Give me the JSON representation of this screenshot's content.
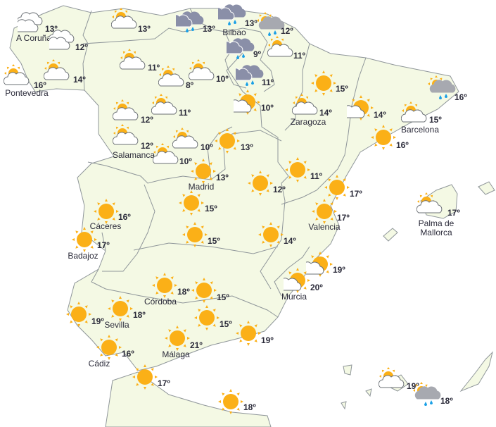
{
  "colors": {
    "land": "#f4f9e4",
    "border": "#8f969a",
    "sun": "#fbb017",
    "cloud_fill": "#ffffff",
    "cloud_stroke": "#6b7075",
    "rain_cloud": "#8a8fa8",
    "rain_drop": "#1aa0e6",
    "gray_cloud": "#a7a9b0"
  },
  "degree_symbol": "º",
  "markers": [
    {
      "icon": "cloud",
      "temp": "13º",
      "city": "A Coruña"
    },
    {
      "icon": "cloud",
      "temp": "12º",
      "city": ""
    },
    {
      "icon": "sun-cloud",
      "temp": "16º",
      "city": "Pontevedra"
    },
    {
      "icon": "sun-cloud",
      "temp": "14º",
      "city": ""
    },
    {
      "icon": "sun-cloud",
      "temp": "13º",
      "city": ""
    },
    {
      "icon": "rain",
      "temp": "13º",
      "city": ""
    },
    {
      "icon": "rain",
      "temp": "13º",
      "city": "Bilbao"
    },
    {
      "icon": "sun-rain",
      "temp": "12º",
      "city": ""
    },
    {
      "icon": "rain",
      "temp": "9º",
      "city": ""
    },
    {
      "icon": "sun-cloud",
      "temp": "11º",
      "city": ""
    },
    {
      "icon": "sun-cloud",
      "temp": "11º",
      "city": ""
    },
    {
      "icon": "sun-cloud",
      "temp": "8º",
      "city": ""
    },
    {
      "icon": "sun-cloud",
      "temp": "10º",
      "city": ""
    },
    {
      "icon": "rain",
      "temp": "11º",
      "city": ""
    },
    {
      "icon": "sun-small-cloud",
      "temp": "10º",
      "city": ""
    },
    {
      "icon": "sun-cloud",
      "temp": "12º",
      "city": ""
    },
    {
      "icon": "sun-cloud",
      "temp": "11º",
      "city": ""
    },
    {
      "icon": "sun-cloud",
      "temp": "12º",
      "city": "Salamanca"
    },
    {
      "icon": "sun-cloud",
      "temp": "10º",
      "city": ""
    },
    {
      "icon": "sun-cloud",
      "temp": "10º",
      "city": ""
    },
    {
      "icon": "sun",
      "temp": "13º",
      "city": ""
    },
    {
      "icon": "sun",
      "temp": "15º",
      "city": ""
    },
    {
      "icon": "sun-cloud",
      "temp": "14º",
      "city": "Zaragoza"
    },
    {
      "icon": "sun-small-cloud",
      "temp": "14º",
      "city": ""
    },
    {
      "icon": "sun-rain",
      "temp": "16º",
      "city": ""
    },
    {
      "icon": "sun-cloud",
      "temp": "15º",
      "city": "Barcelona"
    },
    {
      "icon": "sun",
      "temp": "16º",
      "city": ""
    },
    {
      "icon": "sun",
      "temp": "13º",
      "city": "Madrid"
    },
    {
      "icon": "sun",
      "temp": "12º",
      "city": ""
    },
    {
      "icon": "sun",
      "temp": "11º",
      "city": ""
    },
    {
      "icon": "sun",
      "temp": "17º",
      "city": ""
    },
    {
      "icon": "sun",
      "temp": "17º",
      "city": "Valencia"
    },
    {
      "icon": "sun",
      "temp": "15º",
      "city": ""
    },
    {
      "icon": "sun",
      "temp": "16º",
      "city": "Cáceres"
    },
    {
      "icon": "sun",
      "temp": "17º",
      "city": "Badajoz"
    },
    {
      "icon": "sun",
      "temp": "15º",
      "city": ""
    },
    {
      "icon": "sun",
      "temp": "14º",
      "city": ""
    },
    {
      "icon": "sun-small-cloud",
      "temp": "19º",
      "city": ""
    },
    {
      "icon": "sun-small-cloud",
      "temp": "20º",
      "city": "Murcia"
    },
    {
      "icon": "sun",
      "temp": "18º",
      "city": "Córdoba"
    },
    {
      "icon": "sun",
      "temp": "15º",
      "city": ""
    },
    {
      "icon": "sun",
      "temp": "19º",
      "city": ""
    },
    {
      "icon": "sun",
      "temp": "18º",
      "city": "Sevilla"
    },
    {
      "icon": "sun",
      "temp": "15º",
      "city": ""
    },
    {
      "icon": "sun",
      "temp": "19º",
      "city": ""
    },
    {
      "icon": "sun",
      "temp": "21º",
      "city": "Málaga"
    },
    {
      "icon": "sun",
      "temp": "16º",
      "city": "Cádiz"
    },
    {
      "icon": "sun",
      "temp": "17º",
      "city": ""
    },
    {
      "icon": "sun",
      "temp": "18º",
      "city": ""
    },
    {
      "icon": "sun-cloud",
      "temp": "17º",
      "city": "Palma de Mallorca"
    },
    {
      "icon": "sun-cloud",
      "temp": "19º",
      "city": ""
    },
    {
      "icon": "sun-rain",
      "temp": "18º",
      "city": ""
    }
  ]
}
